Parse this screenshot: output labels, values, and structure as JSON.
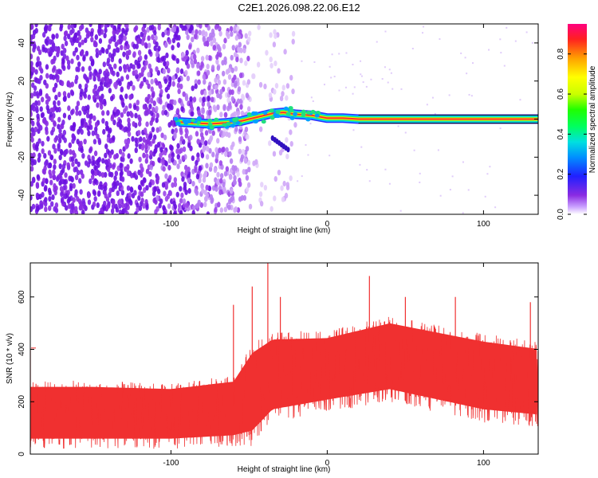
{
  "title": "C2E1.2026.098.22.06.E12",
  "chart_data": [
    {
      "type": "heatmap",
      "xlabel": "Height of straight line (km)",
      "ylabel": "Frequency (Hz)",
      "xlim": [
        -190,
        135
      ],
      "ylim": [
        -50,
        50
      ],
      "xticks": [
        -100,
        0,
        100
      ],
      "yticks": [
        -40,
        -20,
        0,
        20,
        40
      ],
      "colorbar_label": "Normalized spectral amplitude",
      "colorbar_range": [
        0.0,
        0.95
      ],
      "colorbar_ticks": [
        0.0,
        0.2,
        0.4,
        0.6,
        0.8
      ],
      "ridge": [
        {
          "x": -95,
          "y": -1.5
        },
        {
          "x": -85,
          "y": -2
        },
        {
          "x": -75,
          "y": -2.5
        },
        {
          "x": -65,
          "y": -2
        },
        {
          "x": -55,
          "y": -1
        },
        {
          "x": -45,
          "y": 1
        },
        {
          "x": -35,
          "y": 3
        },
        {
          "x": -28,
          "y": 3.5
        },
        {
          "x": -20,
          "y": 2.5
        },
        {
          "x": -10,
          "y": 2
        },
        {
          "x": 0,
          "y": 0.5
        },
        {
          "x": 10,
          "y": 0.5
        },
        {
          "x": 20,
          "y": 0
        },
        {
          "x": 135,
          "y": 0
        }
      ],
      "noise_edge_x": -50,
      "side_branch": [
        {
          "x": -35,
          "y": -10
        },
        {
          "x": -25,
          "y": -16
        }
      ]
    },
    {
      "type": "line",
      "xlabel": "Height of straight line (km)",
      "ylabel": "SNR (10 * v/v)",
      "xlim": [
        -190,
        135
      ],
      "ylim": [
        0,
        730
      ],
      "xticks": [
        -100,
        0,
        100
      ],
      "yticks": [
        0,
        200,
        400,
        600
      ],
      "color": "#f03030",
      "envelope": [
        {
          "x": -190,
          "lo": 20,
          "hi": 280,
          "mid": 150
        },
        {
          "x": -150,
          "lo": 20,
          "hi": 280,
          "mid": 150
        },
        {
          "x": -100,
          "lo": 20,
          "hi": 270,
          "mid": 150
        },
        {
          "x": -60,
          "lo": 30,
          "hi": 300,
          "mid": 170
        },
        {
          "x": -48,
          "lo": 30,
          "hi": 420,
          "mid": 230
        },
        {
          "x": -35,
          "lo": 120,
          "hi": 470,
          "mid": 290
        },
        {
          "x": 0,
          "lo": 160,
          "hi": 470,
          "mid": 320
        },
        {
          "x": 40,
          "lo": 200,
          "hi": 530,
          "mid": 360
        },
        {
          "x": 100,
          "lo": 120,
          "hi": 460,
          "mid": 290
        },
        {
          "x": 135,
          "lo": 100,
          "hi": 430,
          "mid": 270
        }
      ],
      "peaks": [
        {
          "x": -190,
          "y": 405
        },
        {
          "x": -60,
          "y": 570
        },
        {
          "x": -48,
          "y": 640
        },
        {
          "x": -38,
          "y": 730
        },
        {
          "x": -30,
          "y": 600
        },
        {
          "x": 27,
          "y": 680
        },
        {
          "x": 50,
          "y": 600
        },
        {
          "x": 82,
          "y": 600
        },
        {
          "x": 130,
          "y": 580
        }
      ]
    }
  ]
}
